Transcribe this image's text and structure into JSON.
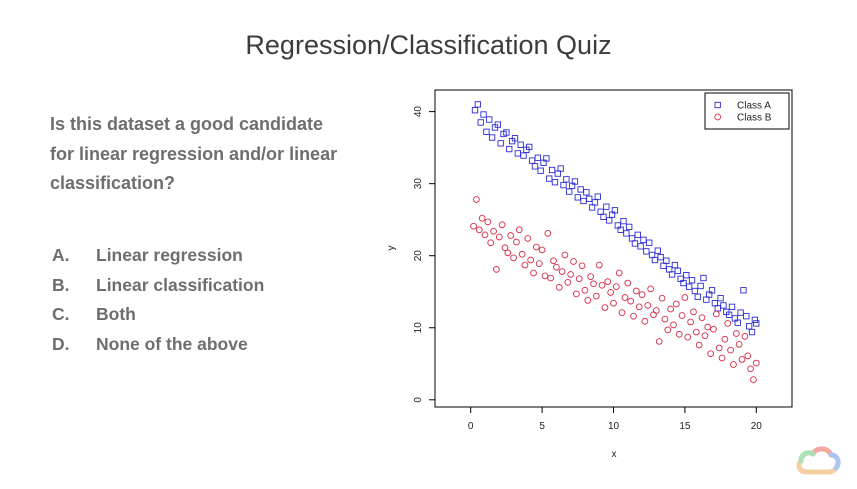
{
  "title": "Regression/Classification Quiz",
  "question": "Is this dataset a good candidate for linear regression and/or linear classification?",
  "options": [
    {
      "letter": "A.",
      "text": "Linear regression"
    },
    {
      "letter": "B.",
      "text": "Linear classification"
    },
    {
      "letter": "C.",
      "text": "Both"
    },
    {
      "letter": "D.",
      "text": "None of the above"
    }
  ],
  "chart_data": {
    "type": "scatter",
    "xlabel": "x",
    "ylabel": "y",
    "xlim": [
      -2.5,
      22.5
    ],
    "ylim": [
      -1,
      43
    ],
    "xticks": [
      0,
      5,
      10,
      15,
      20
    ],
    "yticks": [
      0,
      10,
      20,
      30,
      40
    ],
    "legend_position": "top-right",
    "series": [
      {
        "name": "Class A",
        "marker": "square",
        "color": "#2b2bd6",
        "x": [
          0.3,
          0.5,
          0.7,
          0.9,
          1.1,
          1.3,
          1.5,
          1.7,
          1.9,
          2.1,
          2.3,
          2.5,
          2.7,
          2.9,
          3.1,
          3.3,
          3.5,
          3.7,
          3.9,
          4.1,
          4.3,
          4.5,
          4.7,
          4.9,
          5.1,
          5.3,
          5.5,
          5.7,
          5.9,
          6.1,
          6.3,
          6.5,
          6.7,
          6.9,
          7.1,
          7.3,
          7.5,
          7.7,
          7.9,
          8.1,
          8.3,
          8.5,
          8.7,
          8.9,
          9.1,
          9.3,
          9.5,
          9.7,
          9.9,
          10.1,
          10.3,
          10.5,
          10.7,
          10.9,
          11.1,
          11.3,
          11.5,
          11.7,
          11.9,
          12.1,
          12.3,
          12.5,
          12.7,
          12.9,
          13.1,
          13.3,
          13.5,
          13.7,
          13.9,
          14.1,
          14.3,
          14.5,
          14.7,
          14.9,
          15.1,
          15.3,
          15.5,
          15.7,
          15.9,
          16.1,
          16.3,
          16.5,
          16.7,
          16.9,
          17.1,
          17.3,
          17.5,
          17.7,
          17.9,
          18.1,
          18.3,
          18.5,
          18.7,
          18.9,
          19.1,
          19.3,
          19.5,
          19.7,
          19.9,
          20.0
        ],
        "y": [
          40.2,
          41.0,
          38.5,
          39.6,
          37.2,
          38.9,
          36.4,
          37.8,
          38.2,
          35.6,
          36.9,
          37.1,
          34.8,
          35.9,
          36.3,
          34.2,
          35.4,
          33.9,
          34.7,
          35.1,
          33.2,
          32.4,
          33.6,
          31.8,
          32.9,
          33.5,
          30.7,
          31.9,
          30.2,
          31.4,
          32.1,
          29.8,
          30.6,
          28.9,
          29.7,
          30.3,
          28.1,
          29.2,
          27.6,
          28.8,
          27.9,
          26.7,
          27.4,
          28.2,
          26.1,
          25.4,
          26.8,
          24.9,
          25.7,
          26.3,
          24.2,
          23.6,
          24.8,
          23.1,
          24.0,
          22.4,
          21.7,
          22.9,
          21.3,
          22.2,
          20.6,
          21.8,
          20.1,
          19.4,
          20.7,
          19.8,
          18.6,
          19.3,
          18.1,
          17.4,
          18.7,
          17.9,
          16.8,
          16.2,
          17.3,
          15.7,
          16.6,
          15.1,
          14.3,
          15.8,
          16.9,
          13.9,
          14.6,
          15.2,
          13.4,
          12.7,
          14.1,
          13.1,
          12.2,
          11.8,
          12.9,
          11.3,
          10.7,
          12.1,
          15.2,
          11.6,
          10.2,
          9.4,
          11.1,
          10.6
        ]
      },
      {
        "name": "Class B",
        "marker": "circle",
        "color": "#d62b44",
        "x": [
          0.2,
          0.4,
          0.6,
          0.8,
          1.0,
          1.2,
          1.4,
          1.6,
          1.8,
          2.0,
          2.2,
          2.4,
          2.6,
          2.8,
          3.0,
          3.2,
          3.4,
          3.6,
          3.8,
          4.0,
          4.2,
          4.4,
          4.6,
          4.8,
          5.0,
          5.2,
          5.4,
          5.6,
          5.8,
          6.0,
          6.2,
          6.4,
          6.6,
          6.8,
          7.0,
          7.2,
          7.4,
          7.6,
          7.8,
          8.0,
          8.2,
          8.4,
          8.6,
          8.8,
          9.0,
          9.2,
          9.4,
          9.6,
          9.8,
          10.0,
          10.2,
          10.4,
          10.6,
          10.8,
          11.0,
          11.2,
          11.4,
          11.6,
          11.8,
          12.0,
          12.2,
          12.4,
          12.6,
          12.8,
          13.0,
          13.2,
          13.4,
          13.6,
          13.8,
          14.0,
          14.2,
          14.4,
          14.6,
          14.8,
          15.0,
          15.2,
          15.4,
          15.6,
          15.8,
          16.0,
          16.2,
          16.4,
          16.6,
          16.8,
          17.0,
          17.2,
          17.4,
          17.6,
          17.8,
          18.0,
          18.2,
          18.4,
          18.6,
          18.8,
          19.0,
          19.2,
          19.4,
          19.6,
          19.8,
          20.0
        ],
        "y": [
          24.1,
          27.8,
          23.6,
          25.2,
          22.9,
          24.7,
          21.8,
          23.4,
          18.1,
          22.6,
          24.3,
          21.1,
          20.4,
          22.8,
          19.7,
          21.9,
          23.6,
          20.2,
          18.7,
          22.4,
          19.4,
          17.6,
          21.2,
          18.9,
          20.8,
          17.2,
          23.1,
          16.9,
          19.3,
          18.4,
          15.6,
          17.8,
          20.1,
          16.3,
          17.4,
          19.2,
          14.7,
          16.8,
          18.6,
          15.2,
          13.8,
          17.1,
          16.1,
          14.4,
          18.7,
          15.9,
          12.8,
          16.4,
          14.9,
          13.4,
          15.7,
          17.6,
          12.1,
          14.2,
          16.2,
          13.7,
          11.6,
          15.1,
          12.9,
          14.6,
          10.9,
          13.1,
          15.4,
          11.8,
          12.4,
          8.1,
          14.1,
          11.2,
          9.7,
          12.6,
          10.4,
          13.3,
          9.1,
          11.7,
          14.2,
          8.7,
          10.8,
          12.2,
          9.4,
          7.6,
          11.4,
          8.9,
          10.1,
          6.4,
          9.8,
          11.9,
          7.2,
          5.8,
          8.4,
          10.6,
          6.9,
          4.9,
          9.2,
          7.7,
          5.6,
          8.8,
          6.1,
          4.3,
          2.8,
          5.1
        ]
      }
    ]
  }
}
